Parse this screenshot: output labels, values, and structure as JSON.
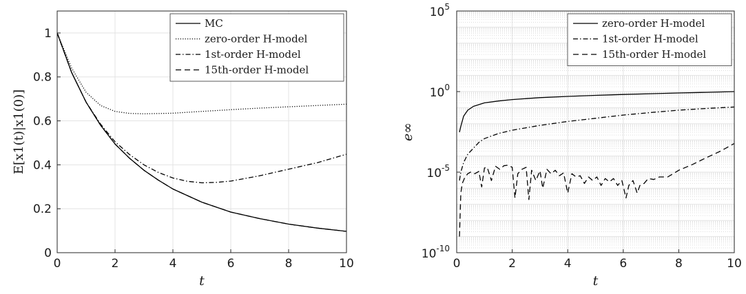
{
  "chart_data": [
    {
      "type": "line",
      "xlabel": "t",
      "ylabel": "E[x1(t)|x1(0)]",
      "xlim": [
        0,
        10
      ],
      "ylim": [
        0,
        1.1
      ],
      "xticks": [
        "0",
        "2",
        "4",
        "6",
        "8",
        "10"
      ],
      "yticks": [
        "0",
        "0.2",
        "0.4",
        "0.6",
        "0.8",
        "1"
      ],
      "grid": true,
      "legend_position": "top-right",
      "series": [
        {
          "name": "MC",
          "style": "solid",
          "x": [
            0,
            0.5,
            1,
            1.5,
            2,
            2.5,
            3,
            3.5,
            4,
            5,
            6,
            7,
            8,
            9,
            10
          ],
          "y": [
            1.0,
            0.82,
            0.685,
            0.58,
            0.495,
            0.43,
            0.375,
            0.33,
            0.29,
            0.23,
            0.185,
            0.155,
            0.13,
            0.112,
            0.097
          ]
        },
        {
          "name": "zero-order H-model",
          "style": "dotted",
          "x": [
            0,
            0.5,
            1,
            1.5,
            2,
            2.5,
            3,
            4,
            5,
            6,
            7,
            8,
            9,
            10
          ],
          "y": [
            1.0,
            0.84,
            0.73,
            0.67,
            0.643,
            0.634,
            0.632,
            0.635,
            0.643,
            0.651,
            0.658,
            0.664,
            0.67,
            0.676
          ]
        },
        {
          "name": "1st-order H-model",
          "style": "dashdot",
          "x": [
            0,
            0.5,
            1,
            1.5,
            2,
            2.5,
            3,
            3.5,
            4,
            4.5,
            5,
            5.5,
            6,
            7,
            8,
            9,
            10
          ],
          "y": [
            1.0,
            0.82,
            0.685,
            0.585,
            0.505,
            0.447,
            0.4,
            0.365,
            0.34,
            0.325,
            0.318,
            0.32,
            0.326,
            0.35,
            0.38,
            0.41,
            0.448
          ]
        },
        {
          "name": "15th-order H-model",
          "style": "dashed",
          "x": [
            0,
            0.5,
            1,
            1.5,
            2,
            2.5,
            3,
            3.5,
            4,
            5,
            6,
            7,
            8,
            9,
            10
          ],
          "y": [
            1.0,
            0.82,
            0.685,
            0.58,
            0.495,
            0.43,
            0.375,
            0.33,
            0.29,
            0.23,
            0.185,
            0.155,
            0.13,
            0.112,
            0.097
          ]
        }
      ]
    },
    {
      "type": "line",
      "xlabel": "t",
      "ylabel": "e∞",
      "xlim": [
        0,
        10
      ],
      "ylim": [
        1e-10,
        100000.0
      ],
      "yscale": "log",
      "xticks": [
        "0",
        "2",
        "4",
        "6",
        "8",
        "10"
      ],
      "yticks": [
        {
          "base": "10",
          "exp": "-10"
        },
        {
          "base": "10",
          "exp": "-5"
        },
        {
          "base": "10",
          "exp": "0"
        },
        {
          "base": "10",
          "exp": "5"
        }
      ],
      "grid": true,
      "legend_position": "top-right",
      "series": [
        {
          "name": "zero-order H-model",
          "style": "solid",
          "x": [
            0.1,
            0.15,
            0.25,
            0.4,
            0.6,
            1,
            1.5,
            2,
            3,
            4,
            5,
            6,
            7,
            8,
            9,
            10
          ],
          "y": [
            0.003,
            0.007,
            0.03,
            0.07,
            0.12,
            0.2,
            0.26,
            0.32,
            0.42,
            0.5,
            0.58,
            0.66,
            0.74,
            0.82,
            0.9,
            1.0
          ]
        },
        {
          "name": "1st-order H-model",
          "style": "dashdot",
          "x": [
            0.1,
            0.15,
            0.25,
            0.4,
            0.6,
            0.8,
            1,
            1.5,
            2,
            3,
            4,
            5,
            6,
            7,
            8,
            9,
            10
          ],
          "y": [
            3e-06,
            1e-05,
            4e-05,
            0.00013,
            0.0003,
            0.0007,
            0.0012,
            0.0025,
            0.004,
            0.008,
            0.014,
            0.022,
            0.035,
            0.05,
            0.07,
            0.09,
            0.11
          ]
        },
        {
          "name": "15th-order H-model",
          "style": "dashed",
          "x": [
            0.1,
            0.15,
            0.2,
            0.3,
            0.4,
            0.5,
            0.65,
            0.8,
            0.9,
            1.0,
            1.1,
            1.25,
            1.4,
            1.55,
            1.7,
            1.85,
            2.0,
            2.1,
            2.2,
            2.35,
            2.5,
            2.6,
            2.7,
            2.85,
            3.0,
            3.1,
            3.25,
            3.4,
            3.55,
            3.7,
            3.85,
            4.0,
            4.15,
            4.3,
            4.45,
            4.6,
            4.75,
            4.9,
            5.05,
            5.2,
            5.35,
            5.5,
            5.65,
            5.8,
            5.95,
            6.1,
            6.2,
            6.35,
            6.5,
            6.6,
            6.75,
            6.9,
            7.1,
            7.3,
            7.6,
            7.8,
            8.0,
            8.5,
            9.0,
            9.5,
            10.0
          ],
          "y": [
            1e-09,
            5e-07,
            2e-06,
            5e-06,
            8e-06,
            1e-05,
            8e-06,
            1.1e-05,
            1.2e-06,
            1.8e-05,
            2e-05,
            3e-06,
            2.3e-05,
            1.5e-05,
            2.5e-05,
            2.7e-05,
            2e-05,
            2.5e-07,
            8e-06,
            1.5e-05,
            2e-05,
            2e-07,
            1.3e-05,
            3e-06,
            1.2e-05,
            1e-06,
            1.5e-05,
            8e-06,
            1.3e-05,
            6e-06,
            9e-06,
            5e-07,
            8e-06,
            5e-06,
            6e-06,
            2e-06,
            5e-06,
            3e-06,
            5e-06,
            1.5e-06,
            4e-06,
            2.5e-06,
            4e-06,
            1.5e-06,
            3e-06,
            2.5e-07,
            1.5e-06,
            3e-06,
            5e-07,
            1.5e-06,
            2e-06,
            4e-06,
            3.5e-06,
            5e-06,
            5e-06,
            8e-06,
            1.3e-05,
            3e-05,
            8e-05,
            0.0002,
            0.0006
          ]
        }
      ]
    }
  ]
}
